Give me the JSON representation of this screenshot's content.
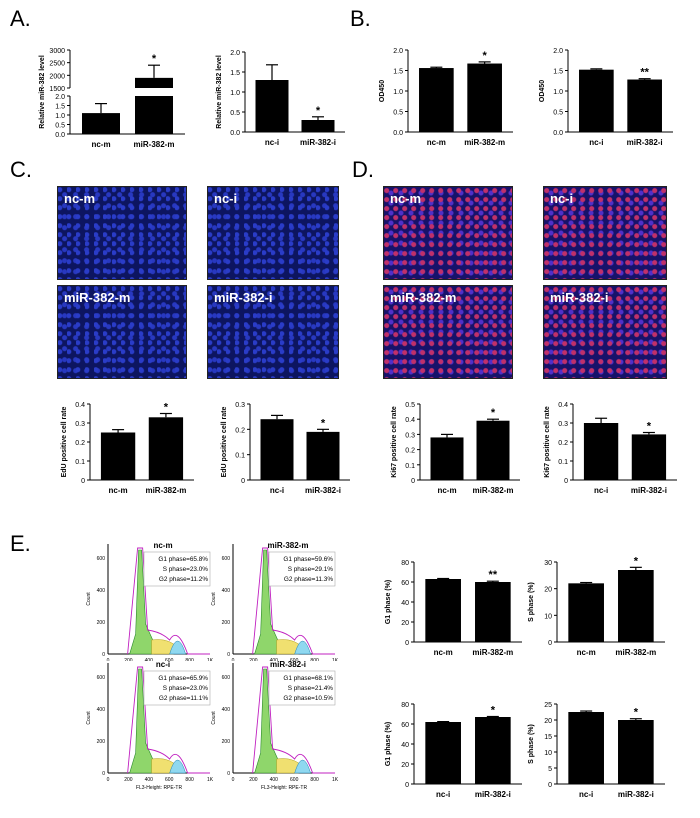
{
  "panels": {
    "A": "A.",
    "B": "B.",
    "C": "C.",
    "D": "D.",
    "E": "E."
  },
  "panelA": {
    "left": {
      "ylabel": "Relative miR-382 level",
      "ticks_top": [
        "3000",
        "2500",
        "2000",
        "1500"
      ],
      "ticks_bottom": [
        "2.0",
        "1.5",
        "1.0",
        "0.5",
        "0.0"
      ],
      "categories": [
        "nc-m",
        "miR-382-m"
      ],
      "sig": "*"
    },
    "right": {
      "ylabel": "Relative miR-382 level",
      "ticks": [
        "2.0",
        "1.5",
        "1.0",
        "0.5",
        "0.0"
      ],
      "categories": [
        "nc-i",
        "miR-382-i"
      ],
      "sig": "*"
    }
  },
  "panelB": {
    "left": {
      "ylabel": "OD450",
      "ticks": [
        "2.0",
        "1.5",
        "1.0",
        "0.5",
        "0.0"
      ],
      "categories": [
        "nc-m",
        "miR-382-m"
      ],
      "sig": "*"
    },
    "right": {
      "ylabel": "OD450",
      "ticks": [
        "2.0",
        "1.5",
        "1.0",
        "0.5",
        "0.0"
      ],
      "categories": [
        "nc-i",
        "miR-382-i"
      ],
      "sig": "**"
    }
  },
  "panelC": {
    "images": [
      "nc-m",
      "nc-i",
      "miR-382-m",
      "miR-382-i"
    ],
    "left": {
      "ylabel": "EdU positive cell rate",
      "ticks": [
        "0.4",
        "0.3",
        "0.2",
        "0.1",
        "0"
      ],
      "categories": [
        "nc-m",
        "miR-382-m"
      ],
      "sig": "*"
    },
    "right": {
      "ylabel": "EdU positive cell rate",
      "ticks": [
        "0.3",
        "0.2",
        "0.1",
        "0"
      ],
      "categories": [
        "nc-i",
        "miR-382-i"
      ],
      "sig": "*"
    }
  },
  "panelD": {
    "images": [
      "nc-m",
      "nc-i",
      "miR-382-m",
      "miR-382-i"
    ],
    "left": {
      "ylabel": "Ki67 positive cell rate",
      "ticks": [
        "0.5",
        "0.4",
        "0.3",
        "0.2",
        "0.1",
        "0"
      ],
      "categories": [
        "nc-m",
        "miR-382-m"
      ],
      "sig": "*"
    },
    "right": {
      "ylabel": "Ki67 positive cell rate",
      "ticks": [
        "0.4",
        "0.3",
        "0.2",
        "0.1",
        "0"
      ],
      "categories": [
        "nc-i",
        "miR-382-i"
      ],
      "sig": "*"
    }
  },
  "panelE": {
    "flow": [
      {
        "title": "nc-m",
        "g1": "G1 phase=65.8%",
        "s": "S phase=23.0%",
        "g2": "G2 phase=11.2%"
      },
      {
        "title": "miR-382-m",
        "g1": "G1 phase=59.6%",
        "s": "S phase=29.1%",
        "g2": "G2 phase=11.3%"
      },
      {
        "title": "nc-i",
        "g1": "G1 phase=65.9%",
        "s": "S phase=23.0%",
        "g2": "G2 phase=11.1%"
      },
      {
        "title": "miR-382-i",
        "g1": "G1 phase=68.1%",
        "s": "S phase=21.4%",
        "g2": "G2 phase=10.5%"
      }
    ],
    "flow_ylabel": "Count",
    "flow_xlabel": "FL3-Height: RPE-TR",
    "flow_yticks": [
      "600",
      "400",
      "200",
      "0"
    ],
    "flow_xticks": [
      "0",
      "200",
      "400",
      "600",
      "800",
      "1K"
    ],
    "g1m": {
      "ylabel": "G1 phase (%)",
      "ticks": [
        "80",
        "60",
        "40",
        "20",
        "0"
      ],
      "categories": [
        "nc-m",
        "miR-382-m"
      ],
      "sig": "**"
    },
    "sm": {
      "ylabel": "S phase (%)",
      "ticks": [
        "30",
        "20",
        "10",
        "0"
      ],
      "categories": [
        "nc-m",
        "miR-382-m"
      ],
      "sig": "*"
    },
    "g1i": {
      "ylabel": "G1 phase (%)",
      "ticks": [
        "80",
        "60",
        "40",
        "20",
        "0"
      ],
      "categories": [
        "nc-i",
        "miR-382-i"
      ],
      "sig": "*"
    },
    "si": {
      "ylabel": "S phase (%)",
      "ticks": [
        "25",
        "20",
        "15",
        "10",
        "5",
        "0"
      ],
      "categories": [
        "nc-i",
        "miR-382-i"
      ],
      "sig": "*"
    }
  },
  "chart_data": [
    {
      "type": "bar",
      "id": "A-left",
      "categories": [
        "nc-m",
        "miR-382-m"
      ],
      "values": [
        1.1,
        1900
      ],
      "errors": [
        0.5,
        500
      ],
      "ylabel": "Relative miR-382 level",
      "axis_break": true,
      "ylim": [
        0,
        3000
      ]
    },
    {
      "type": "bar",
      "id": "A-right",
      "categories": [
        "nc-i",
        "miR-382-i"
      ],
      "values": [
        1.3,
        0.3
      ],
      "errors": [
        0.38,
        0.08
      ],
      "ylabel": "Relative miR-382 level",
      "ylim": [
        0,
        2.0
      ]
    },
    {
      "type": "bar",
      "id": "B-left",
      "categories": [
        "nc-m",
        "miR-382-m"
      ],
      "values": [
        1.56,
        1.67
      ],
      "errors": [
        0.02,
        0.04
      ],
      "ylabel": "OD450",
      "ylim": [
        0,
        2.0
      ]
    },
    {
      "type": "bar",
      "id": "B-right",
      "categories": [
        "nc-i",
        "miR-382-i"
      ],
      "values": [
        1.52,
        1.28
      ],
      "errors": [
        0.02,
        0.02
      ],
      "ylabel": "OD450",
      "ylim": [
        0,
        2.0
      ]
    },
    {
      "type": "bar",
      "id": "C-left",
      "categories": [
        "nc-m",
        "miR-382-m"
      ],
      "values": [
        0.25,
        0.33
      ],
      "errors": [
        0.015,
        0.02
      ],
      "ylabel": "EdU positive cell rate",
      "ylim": [
        0,
        0.4
      ]
    },
    {
      "type": "bar",
      "id": "C-right",
      "categories": [
        "nc-i",
        "miR-382-i"
      ],
      "values": [
        0.24,
        0.19
      ],
      "errors": [
        0.015,
        0.01
      ],
      "ylabel": "EdU positive cell rate",
      "ylim": [
        0,
        0.3
      ]
    },
    {
      "type": "bar",
      "id": "D-left",
      "categories": [
        "nc-m",
        "miR-382-m"
      ],
      "values": [
        0.28,
        0.39
      ],
      "errors": [
        0.02,
        0.01
      ],
      "ylabel": "Ki67 positive cell rate",
      "ylim": [
        0,
        0.5
      ]
    },
    {
      "type": "bar",
      "id": "D-right",
      "categories": [
        "nc-i",
        "miR-382-i"
      ],
      "values": [
        0.3,
        0.24
      ],
      "errors": [
        0.025,
        0.01
      ],
      "ylabel": "Ki67 positive cell rate",
      "ylim": [
        0,
        0.4
      ]
    },
    {
      "type": "bar",
      "id": "E-g1m",
      "categories": [
        "nc-m",
        "miR-382-m"
      ],
      "values": [
        63,
        60
      ],
      "errors": [
        0.5,
        0.8
      ],
      "ylabel": "G1 phase (%)",
      "ylim": [
        0,
        80
      ]
    },
    {
      "type": "bar",
      "id": "E-sm",
      "categories": [
        "nc-m",
        "miR-382-m"
      ],
      "values": [
        22,
        27
      ],
      "errors": [
        0.3,
        1.0
      ],
      "ylabel": "S phase (%)",
      "ylim": [
        0,
        30
      ]
    },
    {
      "type": "bar",
      "id": "E-g1i",
      "categories": [
        "nc-i",
        "miR-382-i"
      ],
      "values": [
        62,
        67
      ],
      "errors": [
        0.4,
        0.5
      ],
      "ylabel": "G1 phase (%)",
      "ylim": [
        0,
        80
      ]
    },
    {
      "type": "bar",
      "id": "E-si",
      "categories": [
        "nc-i",
        "miR-382-i"
      ],
      "values": [
        22.5,
        20
      ],
      "errors": [
        0.3,
        0.4
      ],
      "ylabel": "S phase (%)",
      "ylim": [
        0,
        25
      ]
    }
  ]
}
